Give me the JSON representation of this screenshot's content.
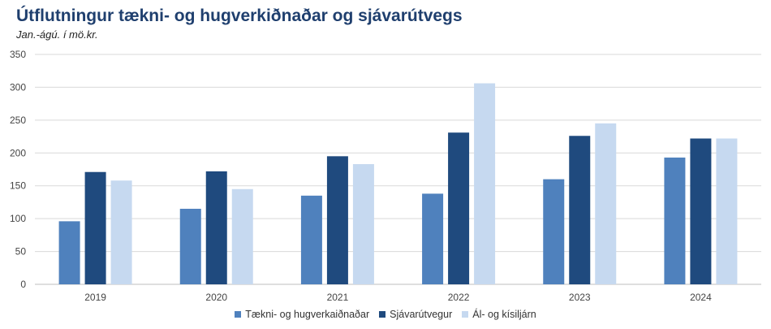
{
  "chart_data": {
    "type": "bar",
    "title": "Útflutningur tækni- og hugverkiðnaðar og sjávarútvegs",
    "subtitle": "Jan.-ágú. í mö.kr.",
    "categories": [
      "2019",
      "2020",
      "2021",
      "2022",
      "2023",
      "2024"
    ],
    "series": [
      {
        "name": "Tækni- og hugverkaiðnaðar",
        "color": "#4f81bd",
        "values": [
          96,
          115,
          135,
          138,
          160,
          193
        ]
      },
      {
        "name": "Sjávarútvegur",
        "color": "#1f4a7e",
        "values": [
          171,
          172,
          195,
          231,
          226,
          222
        ]
      },
      {
        "name": "Ál- og kísiljárn",
        "color": "#c6d9f0",
        "values": [
          158,
          145,
          183,
          306,
          245,
          222
        ]
      }
    ],
    "y_ticks": [
      "0",
      "50",
      "100",
      "150",
      "200",
      "250",
      "300",
      "350"
    ],
    "ylim": [
      0,
      350
    ],
    "grid": true,
    "legend_position": "bottom"
  }
}
